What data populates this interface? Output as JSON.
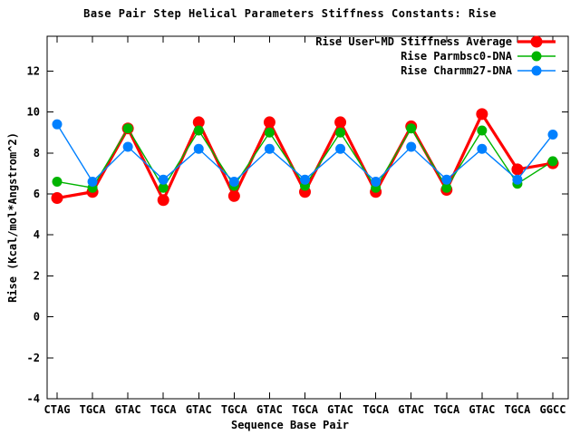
{
  "chart_data": {
    "type": "line",
    "title": "Base Pair Step Helical Parameters Stiffness Constants: Rise",
    "xlabel": "Sequence Base Pair",
    "ylabel": "Rise (Kcal/mol*Angstrom^2)",
    "categories": [
      "CTAG",
      "TGCA",
      "GTAC",
      "TGCA",
      "GTAC",
      "TGCA",
      "GTAC",
      "TGCA",
      "GTAC",
      "TGCA",
      "GTAC",
      "TGCA",
      "GTAC",
      "TGCA",
      "GGCC"
    ],
    "series": [
      {
        "name": "Rise User-MD Stiffness Average",
        "color": "#ff0000",
        "line_width": 3.2,
        "marker_radius": 6.5,
        "values": [
          5.8,
          6.1,
          9.2,
          5.7,
          9.5,
          5.9,
          9.5,
          6.1,
          9.5,
          6.1,
          9.3,
          6.2,
          9.9,
          7.2,
          7.5
        ]
      },
      {
        "name": "Rise Parmbsc0-DNA",
        "color": "#00b400",
        "line_width": 1.4,
        "marker_radius": 5.5,
        "values": [
          6.6,
          6.3,
          9.2,
          6.3,
          9.1,
          6.4,
          9.0,
          6.4,
          9.0,
          6.3,
          9.2,
          6.3,
          9.1,
          6.5,
          7.6
        ]
      },
      {
        "name": "Rise Charmm27-DNA",
        "color": "#0080ff",
        "line_width": 1.4,
        "marker_radius": 5.5,
        "values": [
          9.4,
          6.6,
          8.3,
          6.7,
          8.2,
          6.6,
          8.2,
          6.7,
          8.2,
          6.6,
          8.3,
          6.7,
          8.2,
          6.7,
          8.9
        ]
      }
    ],
    "ylim": [
      -4,
      13.7
    ],
    "yticks": [
      -4,
      -2,
      0,
      2,
      4,
      6,
      8,
      10,
      12
    ],
    "grid": false,
    "legend_position": "top-right"
  }
}
